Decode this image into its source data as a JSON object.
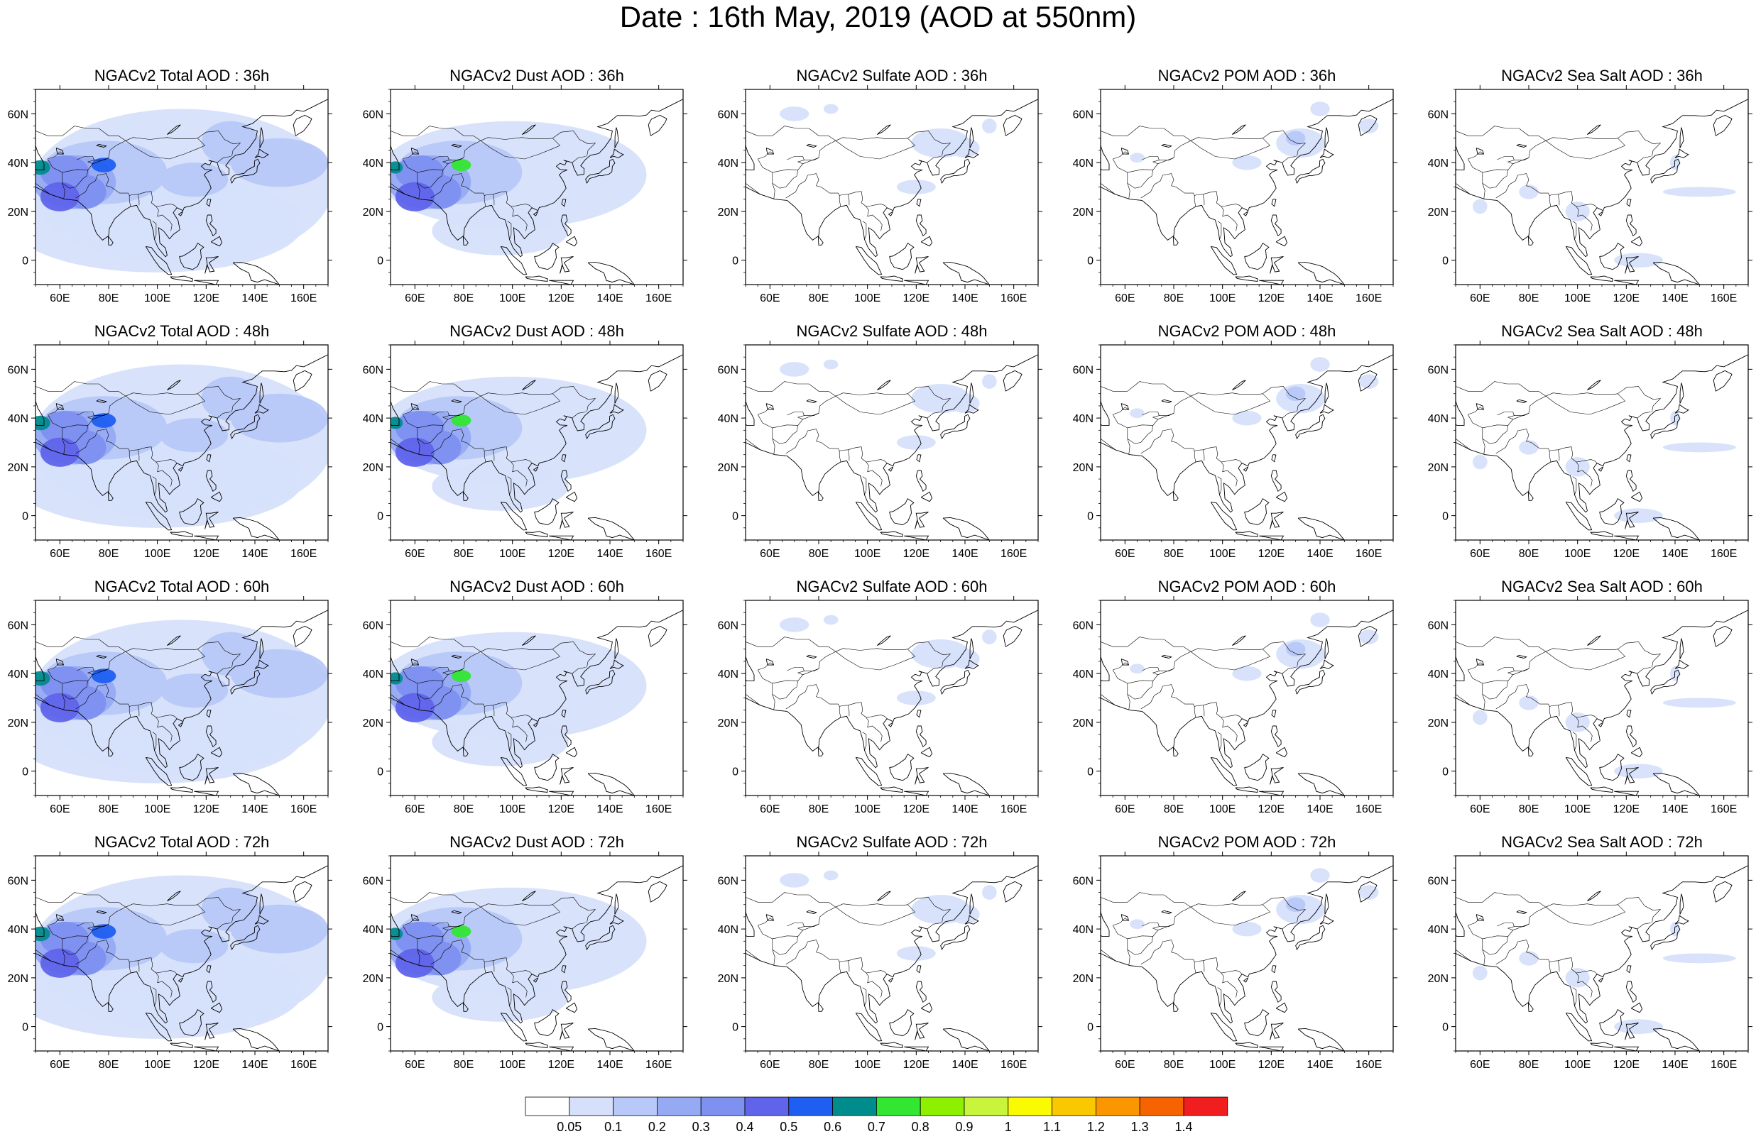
{
  "title": "Date : 16th May, 2019 (AOD at 550nm)",
  "panels": [
    [
      "NGACv2 Total AOD : 36h",
      "NGACv2 Dust AOD : 36h",
      "NGACv2 Sulfate AOD : 36h",
      "NGACv2 POM AOD : 36h",
      "NGACv2 Sea Salt AOD : 36h"
    ],
    [
      "NGACv2 Total AOD : 48h",
      "NGACv2 Dust AOD : 48h",
      "NGACv2 Sulfate AOD : 48h",
      "NGACv2 POM AOD : 48h",
      "NGACv2 Sea Salt AOD : 48h"
    ],
    [
      "NGACv2 Total AOD : 60h",
      "NGACv2 Dust AOD : 60h",
      "NGACv2 Sulfate AOD : 60h",
      "NGACv2 POM AOD : 60h",
      "NGACv2 Sea Salt AOD : 60h"
    ],
    [
      "NGACv2 Total AOD : 72h",
      "NGACv2 Dust AOD : 72h",
      "NGACv2 Sulfate AOD : 72h",
      "NGACv2 POM AOD : 72h",
      "NGACv2 Sea Salt  AOD : 72h"
    ]
  ],
  "map_extent": {
    "lon": [
      50,
      170
    ],
    "lat": [
      -10,
      70
    ]
  },
  "lon_ticks": [
    "60E",
    "80E",
    "100E",
    "120E",
    "140E",
    "160E"
  ],
  "lon_tick_values": [
    60,
    80,
    100,
    120,
    140,
    160
  ],
  "lat_ticks": [
    "60N",
    "40N",
    "20N",
    "0"
  ],
  "lat_tick_values": [
    60,
    40,
    20,
    0
  ],
  "colorbar": {
    "labels": [
      "0.05",
      "0.1",
      "0.2",
      "0.3",
      "0.4",
      "0.5",
      "0.6",
      "0.7",
      "0.8",
      "0.9",
      "1",
      "1.1",
      "1.2",
      "1.3",
      "1.4"
    ],
    "colors": [
      "#ffffff",
      "#d6e0fb",
      "#b8c8f8",
      "#96aaf4",
      "#7e90f0",
      "#5f64ea",
      "#1e5ef0",
      "#008c8c",
      "#32e632",
      "#8cf000",
      "#c8f53c",
      "#fafa00",
      "#fac800",
      "#fa9600",
      "#f56400",
      "#f01e1e"
    ]
  }
}
